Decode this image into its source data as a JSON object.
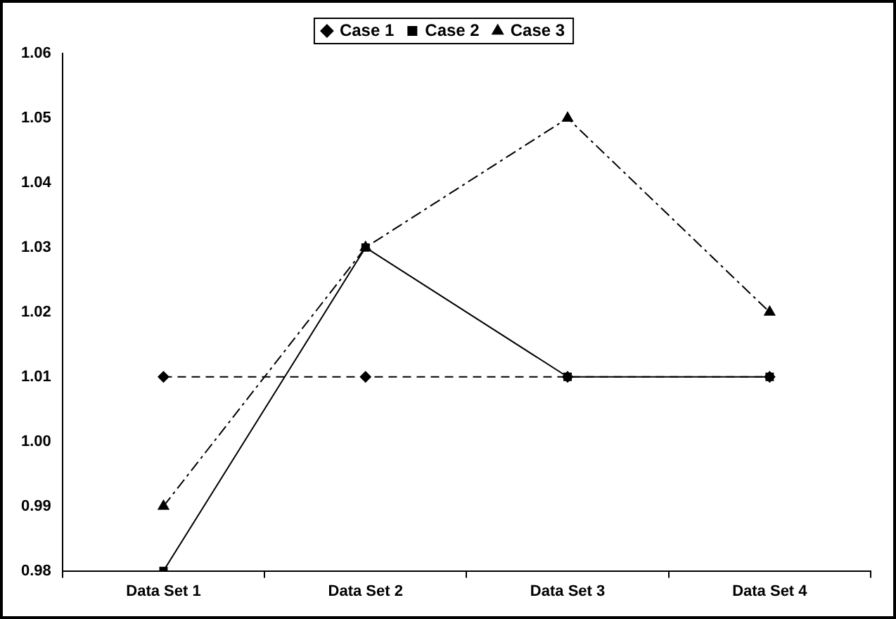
{
  "chart_data": {
    "type": "line",
    "categories": [
      "Data Set 1",
      "Data Set 2",
      "Data Set 3",
      "Data Set 4"
    ],
    "series": [
      {
        "name": "Case 1",
        "color": "#000000",
        "values": [
          1.01,
          1.01,
          1.01,
          1.01
        ],
        "marker": "diamond",
        "line_style": "dashed"
      },
      {
        "name": "Case 2",
        "color": "#000000",
        "values": [
          0.98,
          1.03,
          1.01,
          1.01
        ],
        "marker": "square",
        "line_style": "solid"
      },
      {
        "name": "Case 3",
        "color": "#000000",
        "values": [
          0.99,
          1.03,
          1.05,
          1.02
        ],
        "marker": "triangle",
        "line_style": "dashdot"
      }
    ],
    "ylim": [
      0.98,
      1.06
    ],
    "yticks": [
      0.98,
      0.99,
      {
        "value": 1,
        "label": "1.00"
      },
      1.01,
      1.02,
      1.03,
      1.04,
      1.05,
      1.06
    ],
    "grid": false,
    "legend": "top"
  }
}
